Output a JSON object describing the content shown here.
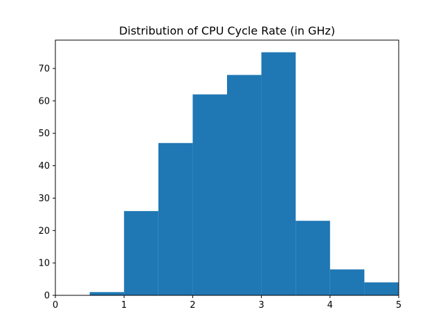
{
  "chart_data": {
    "type": "bar",
    "title": "Distribution of CPU Cycle Rate (in GHz)",
    "xlabel": "",
    "ylabel": "",
    "xlim": [
      0,
      5
    ],
    "ylim": [
      0,
      78.75
    ],
    "grid": false,
    "bar_color": "#1f77b4",
    "bins": [
      {
        "start": 0.5,
        "end": 1.0,
        "count": 1
      },
      {
        "start": 1.0,
        "end": 1.5,
        "count": 26
      },
      {
        "start": 1.5,
        "end": 2.0,
        "count": 47
      },
      {
        "start": 2.0,
        "end": 2.5,
        "count": 62
      },
      {
        "start": 2.5,
        "end": 3.0,
        "count": 68
      },
      {
        "start": 3.0,
        "end": 3.5,
        "count": 75
      },
      {
        "start": 3.5,
        "end": 4.0,
        "count": 23
      },
      {
        "start": 4.0,
        "end": 4.5,
        "count": 8
      },
      {
        "start": 4.5,
        "end": 5.0,
        "count": 4
      }
    ],
    "x_ticks": [
      {
        "value": 0,
        "label": "0"
      },
      {
        "value": 1,
        "label": "1"
      },
      {
        "value": 2,
        "label": "2"
      },
      {
        "value": 3,
        "label": "3"
      },
      {
        "value": 4,
        "label": "4"
      },
      {
        "value": 5,
        "label": "5"
      }
    ],
    "y_ticks": [
      {
        "value": 0,
        "label": "0"
      },
      {
        "value": 10,
        "label": "10"
      },
      {
        "value": 20,
        "label": "20"
      },
      {
        "value": 30,
        "label": "30"
      },
      {
        "value": 40,
        "label": "40"
      },
      {
        "value": 50,
        "label": "50"
      },
      {
        "value": 60,
        "label": "60"
      },
      {
        "value": 70,
        "label": "70"
      }
    ]
  }
}
